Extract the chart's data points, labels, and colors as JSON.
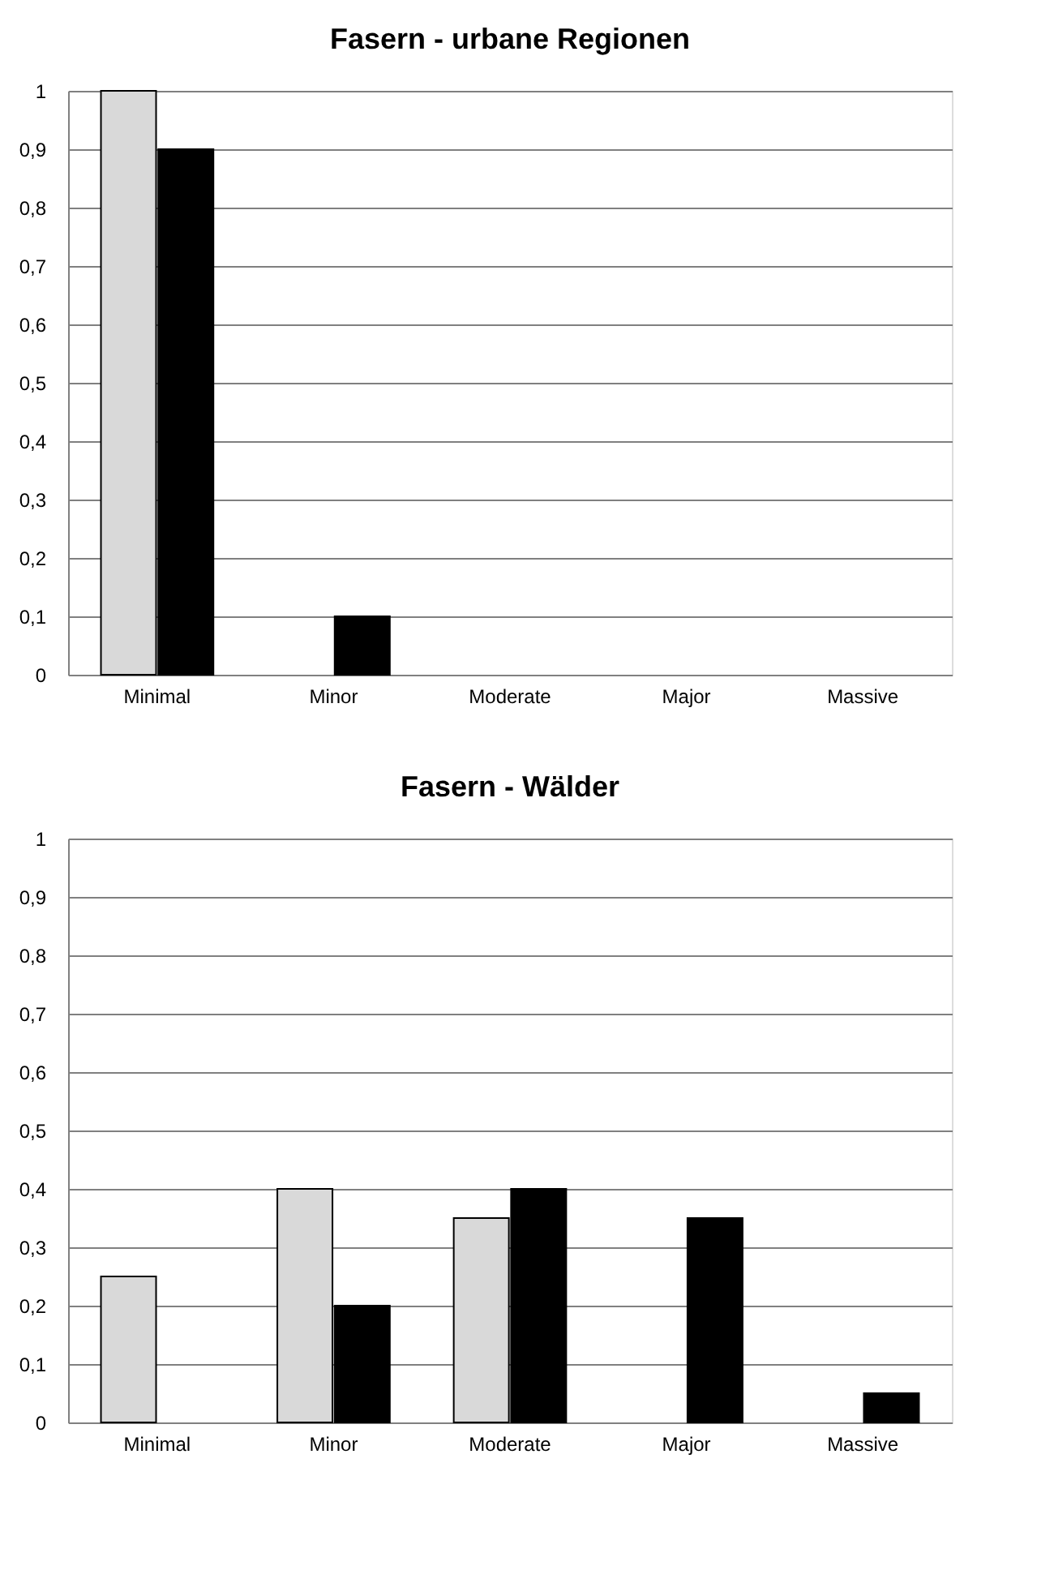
{
  "chart_data": [
    {
      "type": "bar",
      "title": "Fasern - urbane Regionen",
      "categories": [
        "Minimal",
        "Minor",
        "Moderate",
        "Major",
        "Massive"
      ],
      "series": [
        {
          "color": "#d9d9d9",
          "values": [
            1,
            0,
            0,
            0,
            0
          ]
        },
        {
          "color": "#000000",
          "values": [
            0.9,
            0.1,
            0,
            0,
            0
          ]
        }
      ],
      "ylim": [
        0,
        1
      ],
      "yticks": [
        {
          "value": 0,
          "label": "0"
        },
        {
          "value": 0.1,
          "label": "0,1"
        },
        {
          "value": 0.2,
          "label": "0,2"
        },
        {
          "value": 0.3,
          "label": "0,3"
        },
        {
          "value": 0.4,
          "label": "0,4"
        },
        {
          "value": 0.5,
          "label": "0,5"
        },
        {
          "value": 0.6,
          "label": "0,6"
        },
        {
          "value": 0.7,
          "label": "0,7"
        },
        {
          "value": 0.8,
          "label": "0,8"
        },
        {
          "value": 0.9,
          "label": "0,9"
        },
        {
          "value": 1,
          "label": "1"
        }
      ],
      "grid": "y",
      "legend": false
    },
    {
      "type": "bar",
      "title": "Fasern - Wälder",
      "categories": [
        "Minimal",
        "Minor",
        "Moderate",
        "Major",
        "Massive"
      ],
      "series": [
        {
          "color": "#d9d9d9",
          "values": [
            0.25,
            0.4,
            0.35,
            0,
            0
          ]
        },
        {
          "color": "#000000",
          "values": [
            0,
            0.2,
            0.4,
            0.35,
            0.05
          ]
        }
      ],
      "ylim": [
        0,
        1
      ],
      "yticks": [
        {
          "value": 0,
          "label": "0"
        },
        {
          "value": 0.1,
          "label": "0,1"
        },
        {
          "value": 0.2,
          "label": "0,2"
        },
        {
          "value": 0.3,
          "label": "0,3"
        },
        {
          "value": 0.4,
          "label": "0,4"
        },
        {
          "value": 0.5,
          "label": "0,5"
        },
        {
          "value": 0.6,
          "label": "0,6"
        },
        {
          "value": 0.7,
          "label": "0,7"
        },
        {
          "value": 0.8,
          "label": "0,8"
        },
        {
          "value": 0.9,
          "label": "0,9"
        },
        {
          "value": 1,
          "label": "1"
        }
      ],
      "grid": "y",
      "legend": false
    }
  ]
}
